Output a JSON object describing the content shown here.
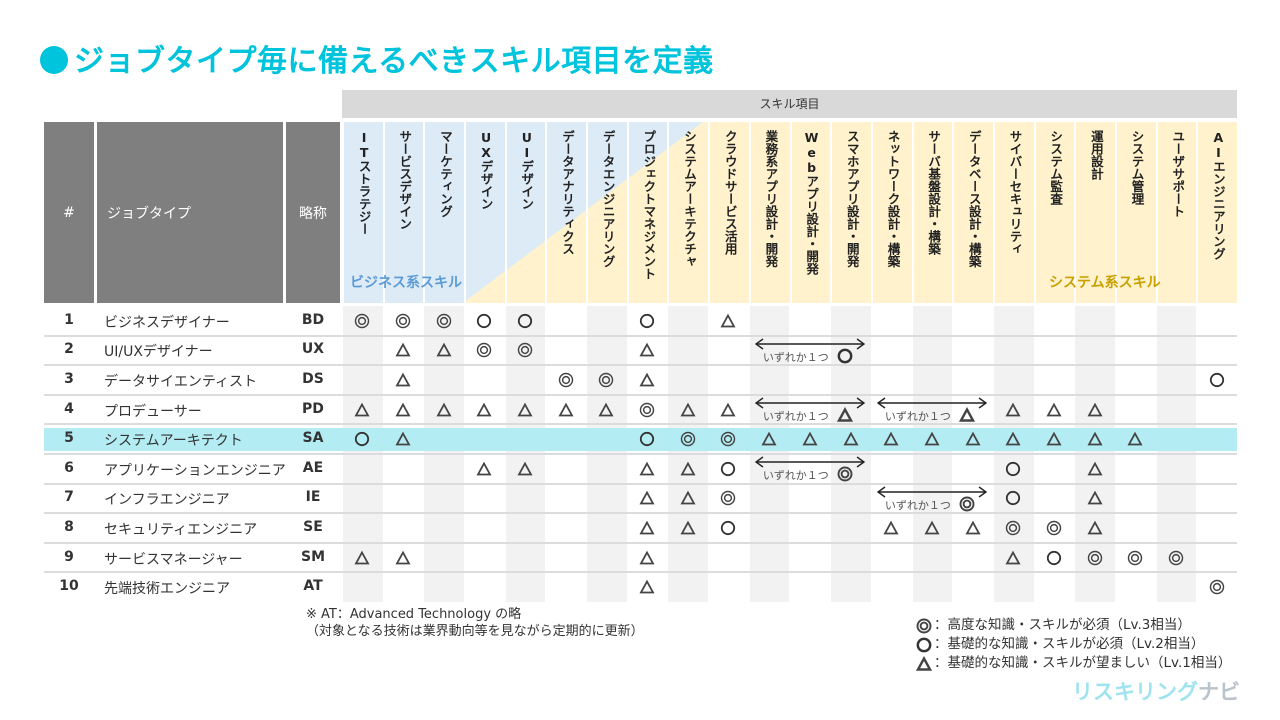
{
  "title": "ジョブタイプ毎に備えるべきスキル項目を定義",
  "colors": {
    "accent": "#00c3dc",
    "business": "#5b9bd5",
    "system": "#c8a000",
    "business_bg": "#ddebf7",
    "system_bg": "#fff2cc",
    "highlight": "#b0ebf2",
    "header_gray": "#7f7f7f"
  },
  "header": {
    "skill_items": "スキル項目",
    "num": "#",
    "job_type": "ジョブタイプ",
    "abbr": "略称",
    "business_label": "ビジネス系スキル",
    "system_label": "システム系スキル"
  },
  "skills": [
    "ITストラテジー",
    "サービスデザイン",
    "マーケティング",
    "UXデザイン",
    "UIデザイン",
    "データアナリティクス",
    "データエンジニアリング",
    "プロジェクトマネジメント",
    "システムアーキテクチャ",
    "クラウドサービス活用",
    "業務系アプリ設計・開発",
    "Webアプリ設計・開発",
    "スマホアプリ設計・開発",
    "ネットワーク設計・構築",
    "サーバ基盤設計・構築",
    "データベース設計・構築",
    "サイバーセキュリティ",
    "システム監査",
    "運用設計",
    "システム管理",
    "ユーザサポート",
    "AIエンジニアリング"
  ],
  "group_text": "いずれか１つ",
  "rows": [
    {
      "num": "1",
      "name": "ビジネスデザイナー",
      "abbr": "BD",
      "cells": [
        "◎",
        "◎",
        "◎",
        "○",
        "○",
        "",
        "",
        "○",
        "",
        "△",
        "",
        "",
        "",
        "",
        "",
        "",
        "",
        "",
        "",
        "",
        "",
        ""
      ],
      "groups": []
    },
    {
      "num": "2",
      "name": "UI/UXデザイナー",
      "abbr": "UX",
      "cells": [
        "",
        "△",
        "△",
        "◎",
        "◎",
        "",
        "",
        "△",
        "",
        "",
        "",
        "",
        "",
        "",
        "",
        "",
        "",
        "",
        "",
        "",
        "",
        ""
      ],
      "groups": [
        {
          "from": 11,
          "to": 13,
          "mark": "○"
        }
      ]
    },
    {
      "num": "3",
      "name": "データサイエンティスト",
      "abbr": "DS",
      "cells": [
        "",
        "△",
        "",
        "",
        "",
        "◎",
        "◎",
        "△",
        "",
        "",
        "",
        "",
        "",
        "",
        "",
        "",
        "",
        "",
        "",
        "",
        "",
        "○"
      ],
      "groups": []
    },
    {
      "num": "4",
      "name": "プロデューサー",
      "abbr": "PD",
      "cells": [
        "△",
        "△",
        "△",
        "△",
        "△",
        "△",
        "△",
        "◎",
        "△",
        "△",
        "",
        "",
        "",
        "",
        "",
        "",
        "△",
        "△",
        "△",
        "",
        "",
        ""
      ],
      "groups": [
        {
          "from": 11,
          "to": 13,
          "mark": "△"
        },
        {
          "from": 14,
          "to": 16,
          "mark": "△"
        }
      ]
    },
    {
      "num": "5",
      "name": "システムアーキテクト",
      "abbr": "SA",
      "highlight": true,
      "cells": [
        "○",
        "△",
        "",
        "",
        "",
        "",
        "",
        "○",
        "◎",
        "◎",
        "△",
        "△",
        "△",
        "△",
        "△",
        "△",
        "△",
        "△",
        "△",
        "△",
        "",
        ""
      ],
      "groups": []
    },
    {
      "num": "6",
      "name": "アプリケーションエンジニア",
      "abbr": "AE",
      "cells": [
        "",
        "",
        "",
        "△",
        "△",
        "",
        "",
        "△",
        "△",
        "○",
        "",
        "",
        "",
        "",
        "",
        "",
        "○",
        "",
        "△",
        "",
        "",
        ""
      ],
      "groups": [
        {
          "from": 11,
          "to": 13,
          "mark": "◎"
        }
      ]
    },
    {
      "num": "7",
      "name": "インフラエンジニア",
      "abbr": "IE",
      "cells": [
        "",
        "",
        "",
        "",
        "",
        "",
        "",
        "△",
        "△",
        "◎",
        "",
        "",
        "",
        "",
        "",
        "",
        "○",
        "",
        "△",
        "",
        "",
        ""
      ],
      "groups": [
        {
          "from": 14,
          "to": 16,
          "mark": "◎"
        }
      ]
    },
    {
      "num": "8",
      "name": "セキュリティエンジニア",
      "abbr": "SE",
      "cells": [
        "",
        "",
        "",
        "",
        "",
        "",
        "",
        "△",
        "△",
        "○",
        "",
        "",
        "",
        "△",
        "△",
        "△",
        "◎",
        "◎",
        "△",
        "",
        "",
        ""
      ],
      "groups": []
    },
    {
      "num": "9",
      "name": "サービスマネージャー",
      "abbr": "SM",
      "cells": [
        "△",
        "△",
        "",
        "",
        "",
        "",
        "",
        "△",
        "",
        "",
        "",
        "",
        "",
        "",
        "",
        "",
        "△",
        "○",
        "◎",
        "◎",
        "◎",
        ""
      ],
      "groups": []
    },
    {
      "num": "10",
      "name": "先端技術エンジニア",
      "abbr": "AT",
      "cells": [
        "",
        "",
        "",
        "",
        "",
        "",
        "",
        "△",
        "",
        "",
        "",
        "",
        "",
        "",
        "",
        "",
        "",
        "",
        "",
        "",
        "",
        "◎"
      ],
      "groups": []
    }
  ],
  "note": {
    "line1": "※ AT：Advanced Technology の略",
    "line2": "（対象となる技術は業界動向等を見ながら定期的に更新）"
  },
  "legend": [
    {
      "mark": "◎",
      "text": "：高度な知識・スキルが必須（Lv.3相当）"
    },
    {
      "mark": "○",
      "text": "：基礎的な知識・スキルが必須（Lv.2相当）"
    },
    {
      "mark": "△",
      "text": "：基礎的な知識・スキルが望ましい（Lv.1相当）"
    }
  ],
  "logo": {
    "part1": "リスキリング",
    "part2": "ナビ"
  }
}
